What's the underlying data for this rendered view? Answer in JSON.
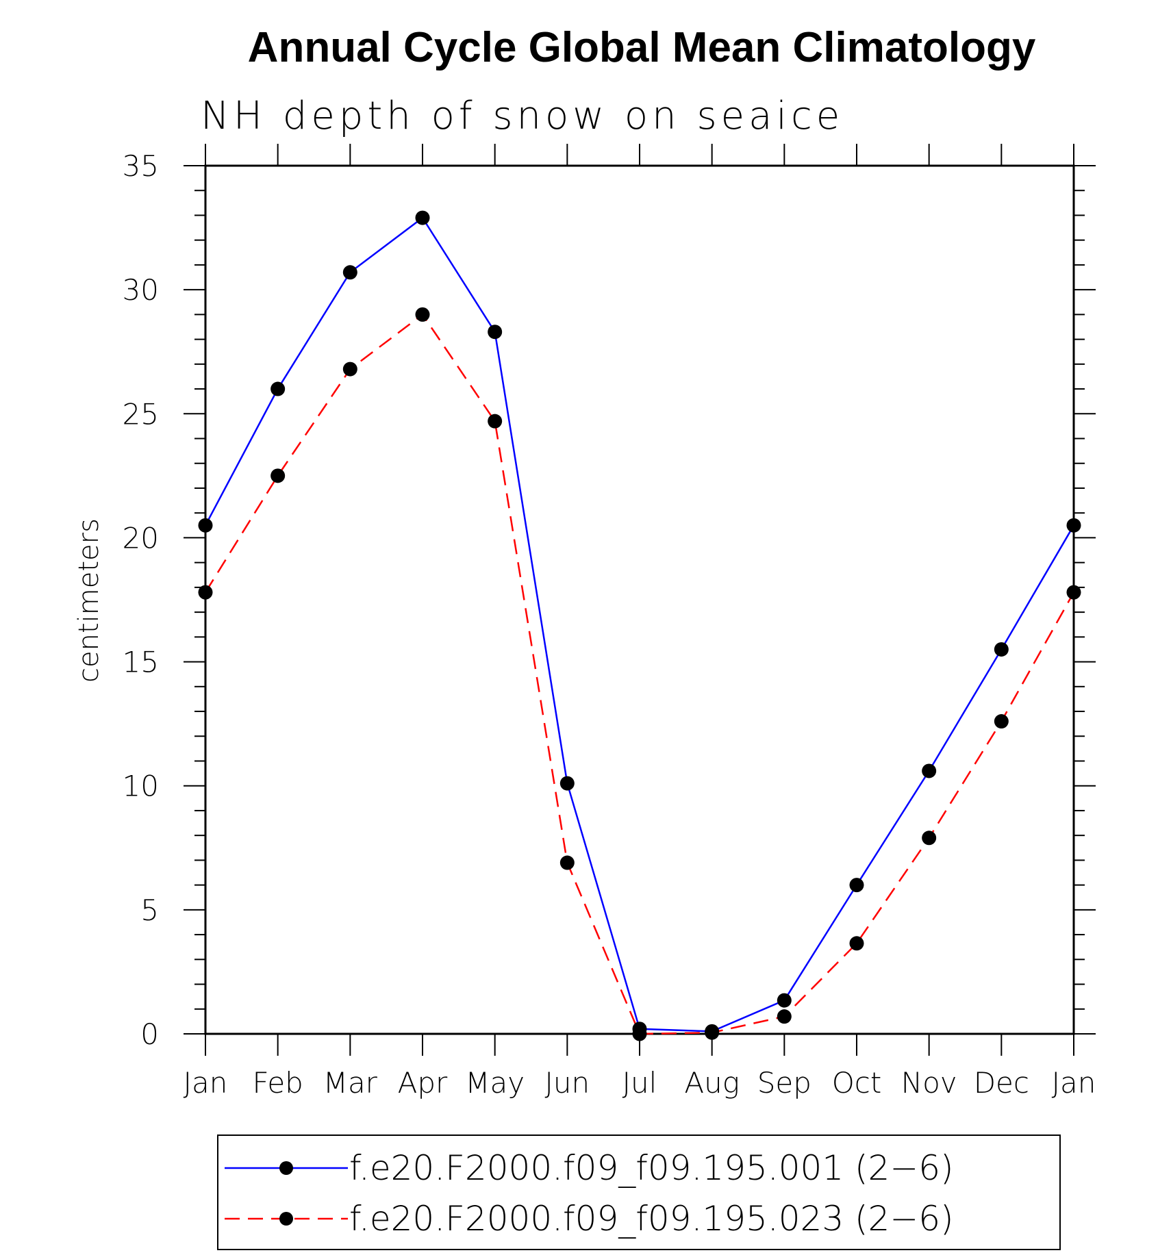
{
  "chart_data": {
    "type": "line",
    "title": "Annual Cycle Global Mean Climatology",
    "subtitle": "NH depth of snow on seaice",
    "xlabel": "",
    "ylabel": "centimeters",
    "categories": [
      "Jan",
      "Feb",
      "Mar",
      "Apr",
      "May",
      "Jun",
      "Jul",
      "Aug",
      "Sep",
      "Oct",
      "Nov",
      "Dec",
      "Jan"
    ],
    "ylim": [
      0,
      35
    ],
    "yticks": [
      0,
      5,
      10,
      15,
      20,
      25,
      30,
      35
    ],
    "grid": false,
    "legend_position": "bottom",
    "series": [
      {
        "name": "f.e20.F2000.f09_f09.195.001 (2−6)",
        "color": "#0000ff",
        "line_style": "solid",
        "marker": "filled-circle",
        "values": [
          20.5,
          26.0,
          30.7,
          32.9,
          28.3,
          10.1,
          0.2,
          0.1,
          1.35,
          6.0,
          10.6,
          15.5,
          20.5
        ]
      },
      {
        "name": "f.e20.F2000.f09_f09.195.023 (2−6)",
        "color": "#ff0000",
        "line_style": "dashed",
        "marker": "filled-circle",
        "values": [
          17.8,
          22.5,
          26.8,
          29.0,
          24.7,
          6.9,
          0.0,
          0.05,
          0.7,
          3.65,
          7.9,
          12.6,
          17.8
        ]
      }
    ]
  }
}
